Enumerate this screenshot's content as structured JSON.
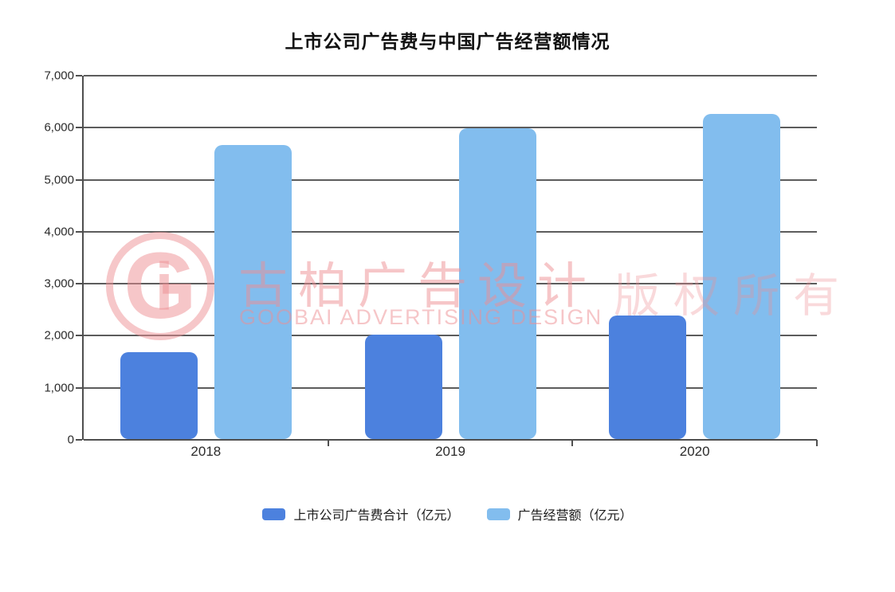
{
  "title": "上市公司广告费与中国广告经营额情况",
  "chart_data": {
    "type": "bar",
    "categories": [
      "2018",
      "2019",
      "2020"
    ],
    "series": [
      {
        "name": "上市公司广告费合计（亿元）",
        "color": "#4c81de",
        "values": [
          1670,
          2000,
          2380
        ]
      },
      {
        "name": "广告经营额（亿元）",
        "color": "#82bdee",
        "values": [
          5650,
          5970,
          6250
        ]
      }
    ],
    "title": "上市公司广告费与中国广告经营额情况",
    "xlabel": "",
    "ylabel": "",
    "ylim": [
      0,
      7000
    ],
    "ytick_interval": 1000,
    "ytick_labels": [
      "0",
      "1,000",
      "2,000",
      "3,000",
      "4,000",
      "5,000",
      "6,000",
      "7,000"
    ],
    "grid": "horizontal",
    "gridline_color": "#5c5c5c",
    "legend_position": "bottom"
  },
  "watermark": {
    "logo_letter_g": "G",
    "logo_letter_i": "i",
    "cn_text": "古柏广告设计",
    "en_text": "GOOBAI ADVERTISING DESIGN",
    "rights_text": "版权所有",
    "color": "#ee8f93"
  }
}
